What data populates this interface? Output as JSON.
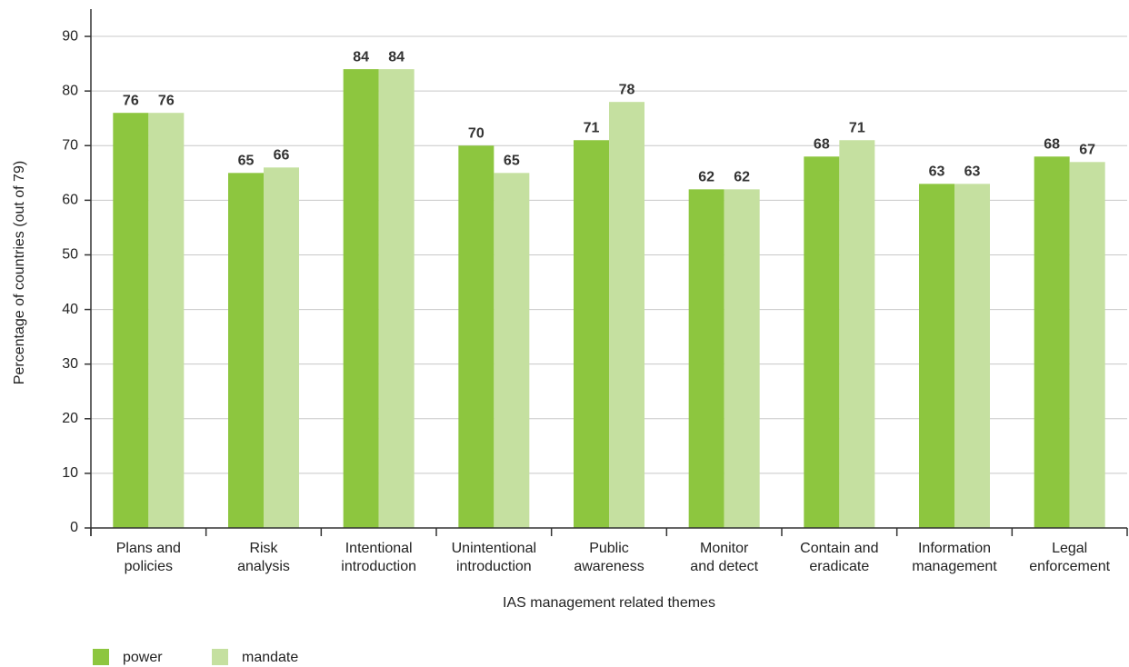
{
  "chart_data": {
    "type": "bar",
    "categories": [
      "Plans and\npolicies",
      "Risk\nanalysis",
      "Intentional\nintroduction",
      "Unintentional\nintroduction",
      "Public\nawareness",
      "Monitor\nand detect",
      "Contain and\neradicate",
      "Information\nmanagement",
      "Legal\nenforcement"
    ],
    "series": [
      {
        "name": "power",
        "color": "#8dc63f",
        "values": [
          76,
          65,
          84,
          70,
          71,
          62,
          68,
          63,
          68
        ]
      },
      {
        "name": "mandate",
        "color": "#c5e0a0",
        "values": [
          76,
          66,
          84,
          65,
          78,
          62,
          71,
          63,
          67
        ]
      }
    ],
    "xlabel": "IAS management related themes",
    "ylabel": "Percentage of countries (out of 79)",
    "ylim": [
      0,
      95
    ],
    "yticks": [
      0,
      10,
      20,
      30,
      40,
      50,
      60,
      70,
      80,
      90
    ],
    "grid": true,
    "legend": "bottom-left"
  }
}
